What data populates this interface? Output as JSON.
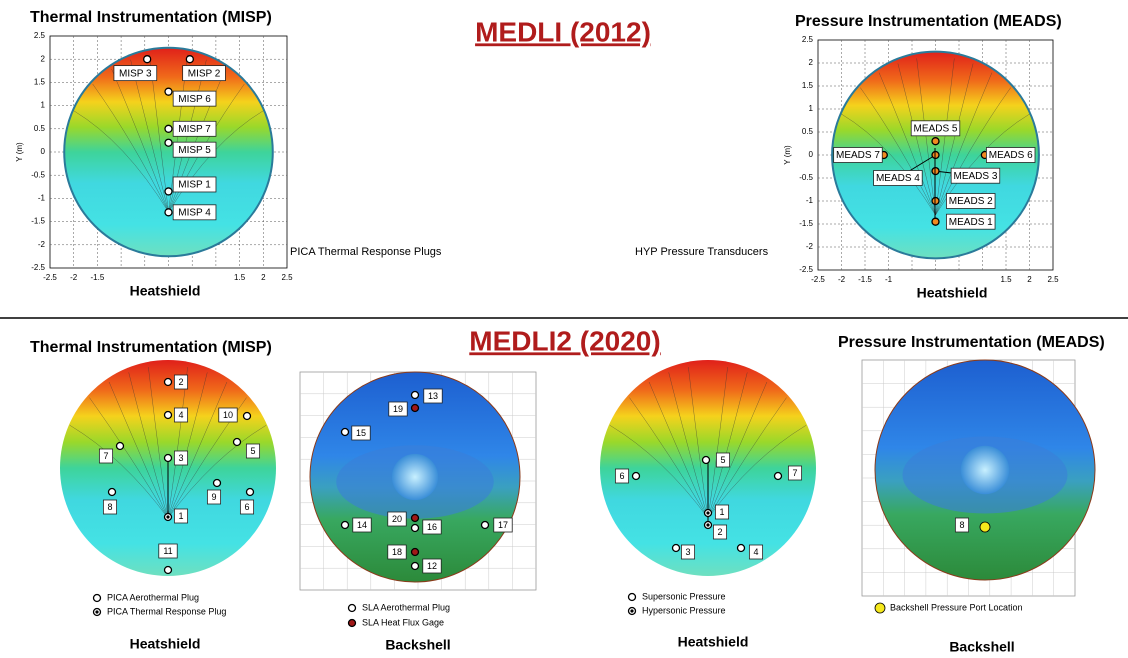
{
  "top": {
    "title": "MEDLI (2012)",
    "thermal": {
      "title": "Thermal Instrumentation (MISP)",
      "y_label": "Y (m)",
      "yticks": [
        2.5,
        2,
        1.5,
        1,
        0.5,
        0,
        -0.5,
        -1,
        -1.5,
        -2,
        -2.5
      ],
      "xticks": [
        -2.5,
        -2,
        -1.5,
        1.5,
        2,
        2.5
      ],
      "sensors": [
        "MISP 3",
        "MISP 2",
        "MISP 6",
        "MISP 7",
        "MISP 5",
        "MISP 1",
        "MISP 4"
      ],
      "caption": "PICA Thermal Response Plugs",
      "footer": "Heatshield"
    },
    "pressure": {
      "title": "Pressure Instrumentation (MEADS)",
      "y_label": "Y (m)",
      "yticks": [
        2.5,
        2,
        1.5,
        1,
        0.5,
        0,
        -0.5,
        -1,
        -1.5,
        -2,
        -2.5
      ],
      "xticks": [
        -2.5,
        -2,
        -1.5,
        -1,
        1.5,
        2,
        2.5
      ],
      "sensors": [
        "MEADS 5",
        "MEADS 7",
        "MEADS 6",
        "MEADS 4",
        "MEADS 3",
        "MEADS 2",
        "MEADS 1"
      ],
      "caption": "HYP Pressure Transducers",
      "footer": "Heatshield"
    }
  },
  "bottom": {
    "title": "MEDLI2 (2020)",
    "panels": [
      {
        "title": "Thermal Instrumentation (MISP)",
        "sensors": [
          "2",
          "4",
          "10",
          "7",
          "5",
          "3",
          "9",
          "8",
          "6",
          "1",
          "11"
        ],
        "legend": [
          "PICA Aerothermal Plug",
          "PICA Thermal Response Plug"
        ],
        "footer": "Heatshield"
      },
      {
        "sensors": [
          "13",
          "19",
          "15",
          "14",
          "20",
          "16",
          "17",
          "18",
          "12"
        ],
        "legend": [
          "SLA Aerothermal Plug",
          "SLA Heat Flux Gage"
        ],
        "footer": "Backshell"
      },
      {
        "sensors": [
          "5",
          "6",
          "7",
          "1",
          "2",
          "3",
          "4"
        ],
        "legend": [
          "Supersonic Pressure",
          "Hypersonic Pressure"
        ],
        "footer": "Heatshield"
      },
      {
        "title": "Pressure Instrumentation (MEADS)",
        "sensors": [
          "8"
        ],
        "legend": [
          "Backshell Pressure Port Location"
        ],
        "footer": "Backshell"
      }
    ]
  }
}
